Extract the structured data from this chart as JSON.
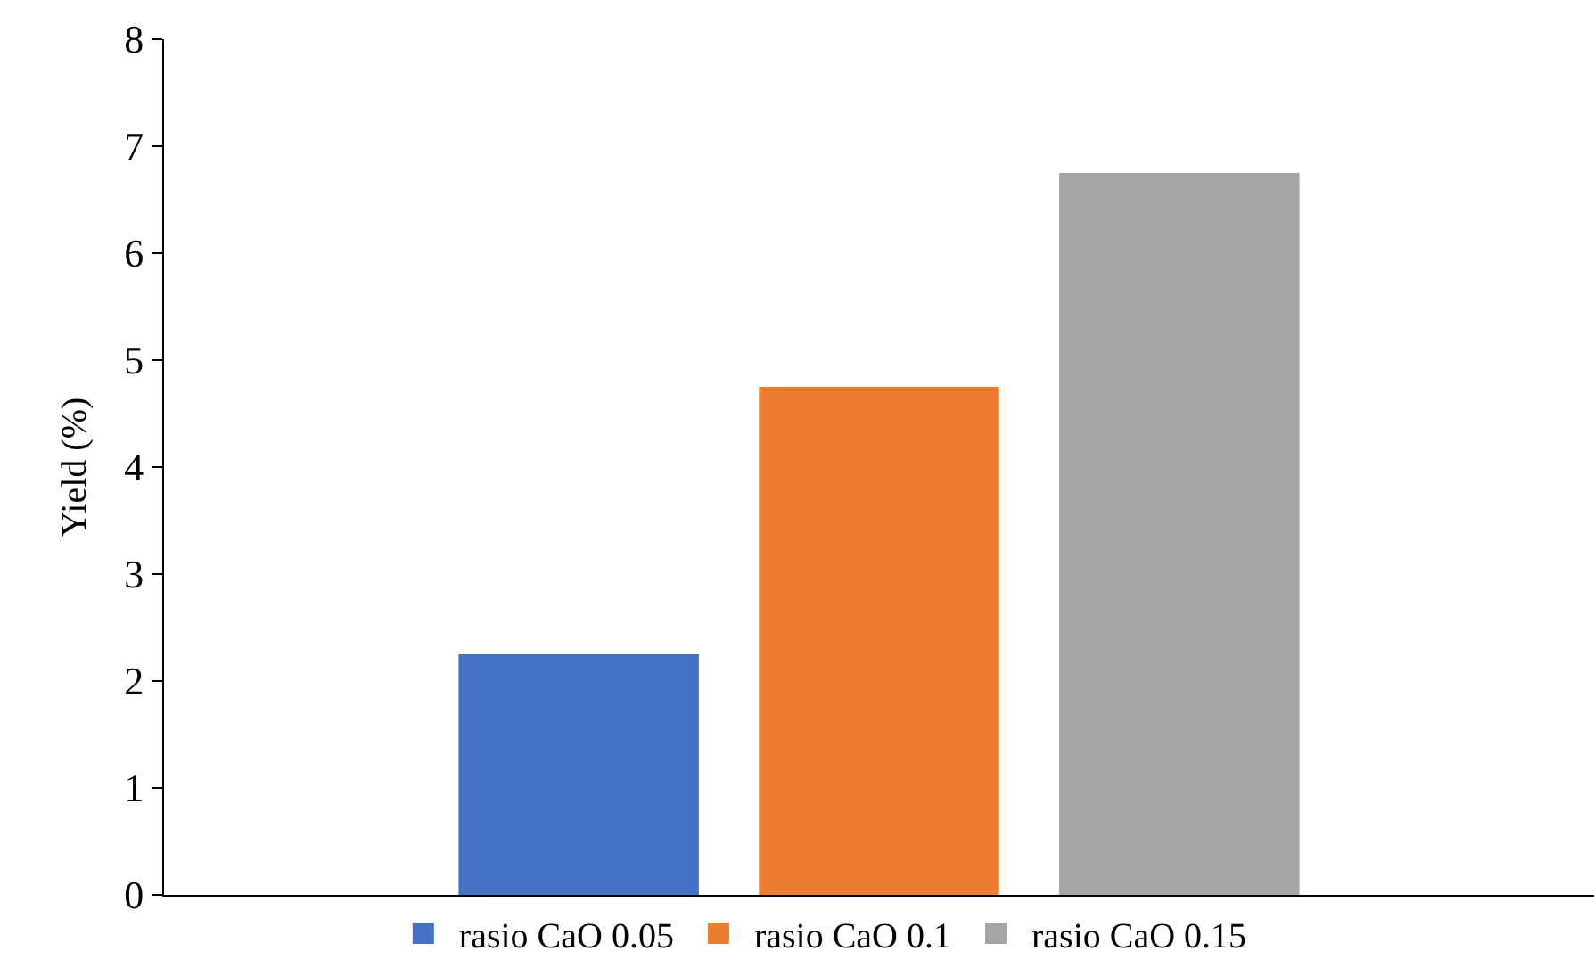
{
  "chart_data": {
    "type": "bar",
    "ylabel": "Yield (%)",
    "categories": [
      null
    ],
    "series": [
      {
        "name": "rasio CaO 0.05",
        "color": "#4472c4",
        "values": [
          2.25
        ]
      },
      {
        "name": "rasio CaO 0.1",
        "color": "#ed7d31",
        "values": [
          4.75
        ]
      },
      {
        "name": "rasio CaO 0.15",
        "color": "#a5a5a5",
        "values": [
          6.75
        ]
      }
    ],
    "ylim": [
      0,
      8
    ],
    "yticks": [
      0,
      1,
      2,
      3,
      4,
      5,
      6,
      7,
      8
    ],
    "legend": "bottom",
    "tick_labels": "y"
  }
}
